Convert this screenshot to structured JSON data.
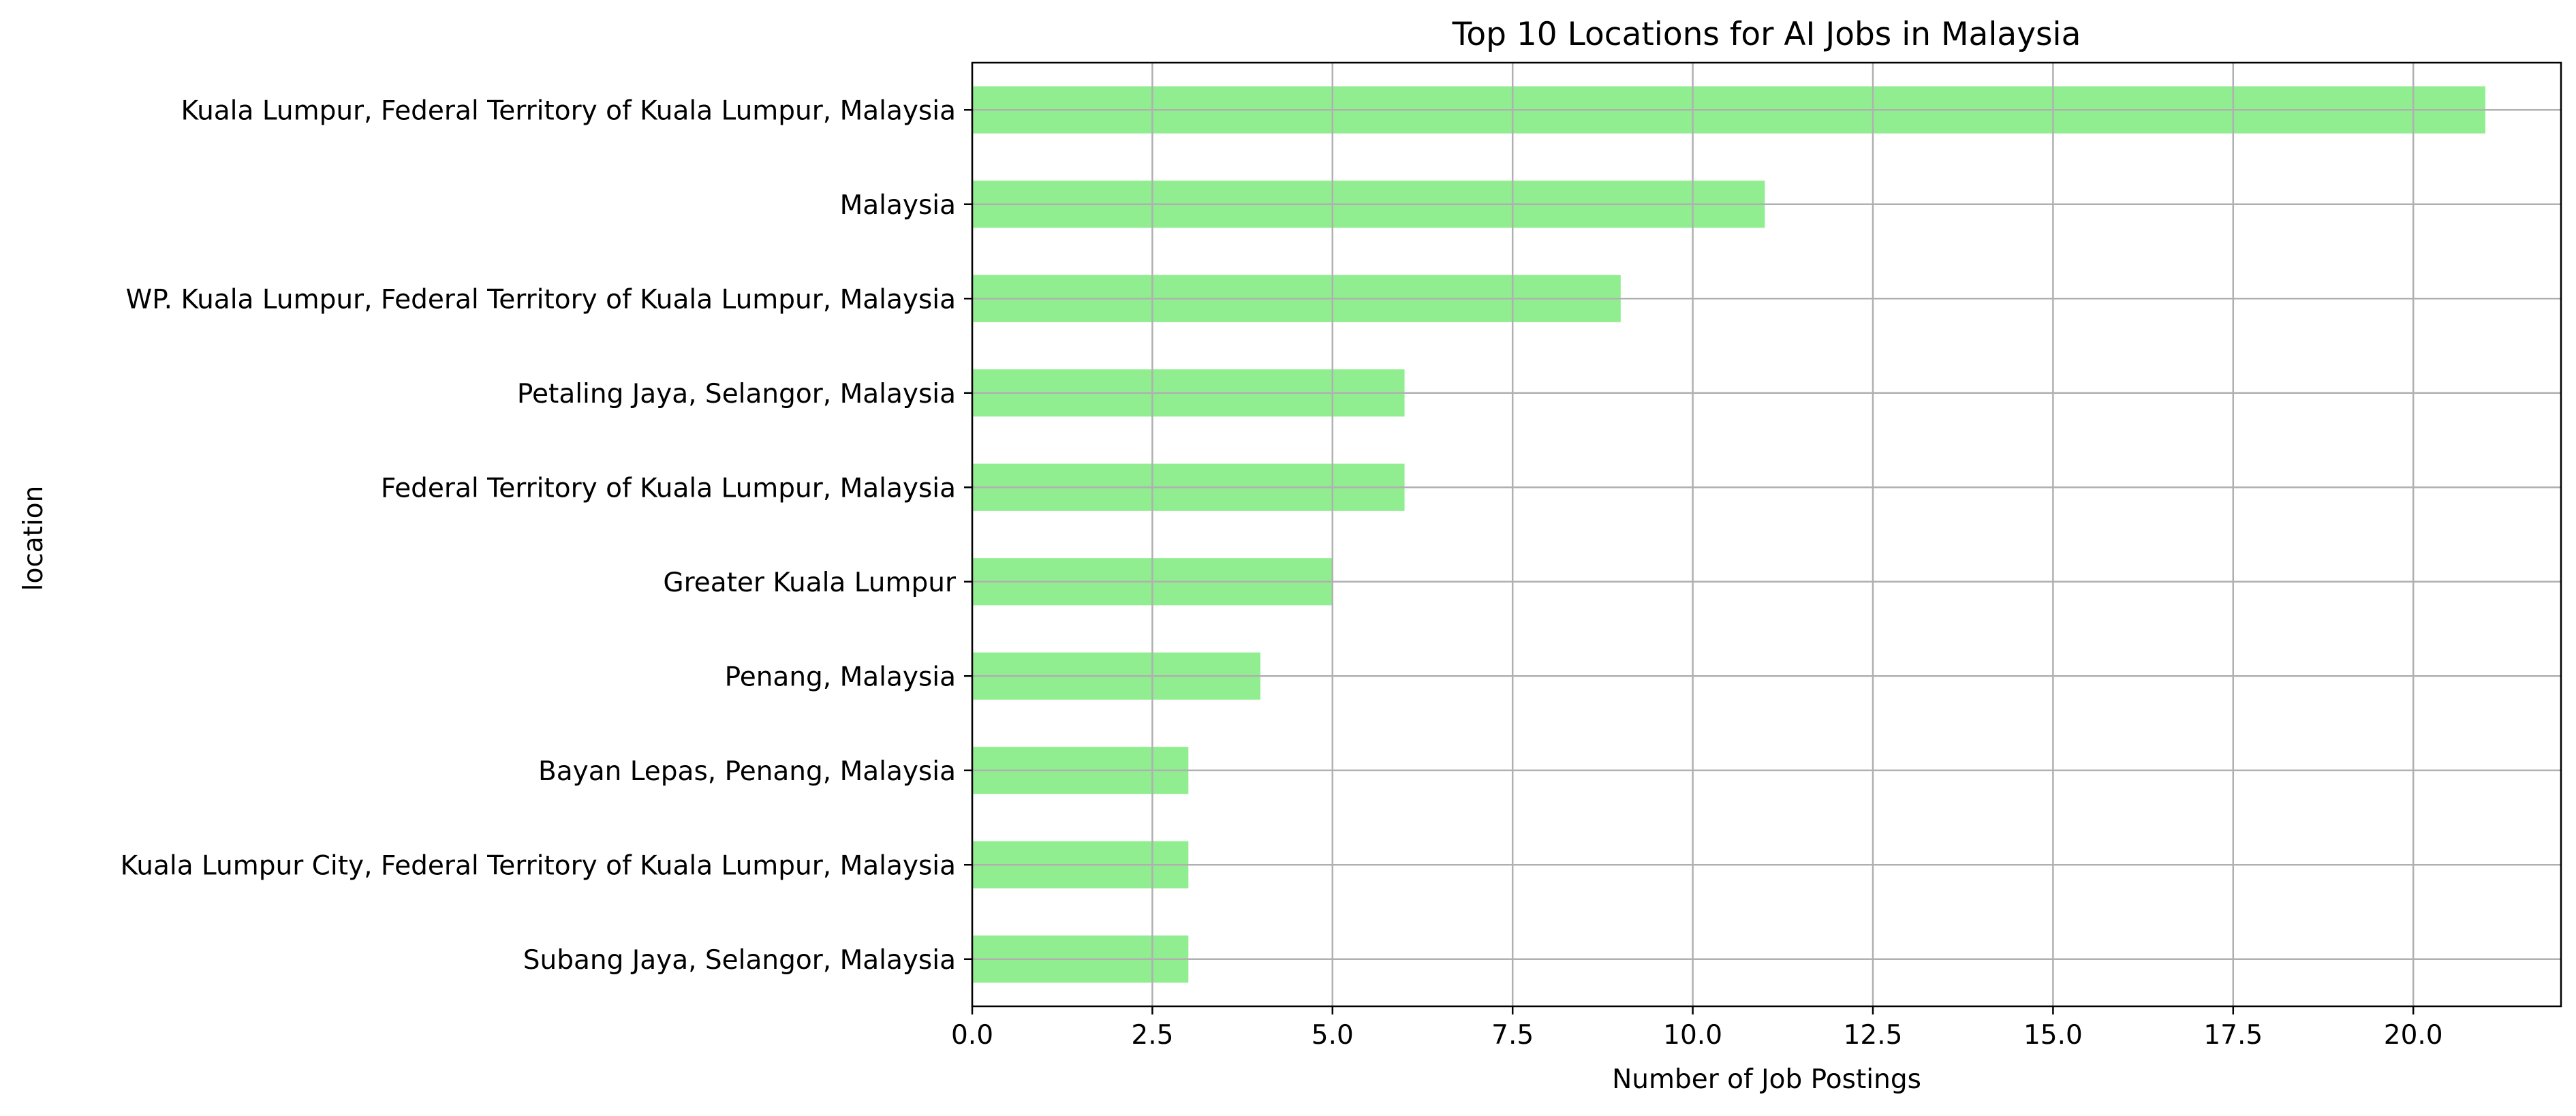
{
  "chart_data": {
    "type": "bar",
    "orientation": "horizontal",
    "title": "Top 10 Locations for AI Jobs in Malaysia",
    "xlabel": "Number of Job Postings",
    "ylabel": "location",
    "categories": [
      "Kuala Lumpur, Federal Territory of Kuala Lumpur, Malaysia",
      "Malaysia",
      "WP. Kuala Lumpur, Federal Territory of Kuala Lumpur, Malaysia",
      "Petaling Jaya, Selangor, Malaysia",
      "Federal Territory of Kuala Lumpur, Malaysia",
      "Greater Kuala Lumpur",
      "Penang, Malaysia",
      "Bayan Lepas, Penang, Malaysia",
      "Kuala Lumpur City, Federal Territory of Kuala Lumpur, Malaysia",
      "Subang Jaya, Selangor, Malaysia"
    ],
    "values": [
      21,
      11,
      9,
      6,
      6,
      5,
      4,
      3,
      3,
      3
    ],
    "xlim": [
      0,
      22.05
    ],
    "xticks": [
      "0.0",
      "2.5",
      "5.0",
      "7.5",
      "10.0",
      "12.5",
      "15.0",
      "17.5",
      "20.0"
    ],
    "grid": true,
    "bar_color": "#90ee90",
    "grid_color": "#b0b0b0",
    "axis_color": "#000000"
  }
}
